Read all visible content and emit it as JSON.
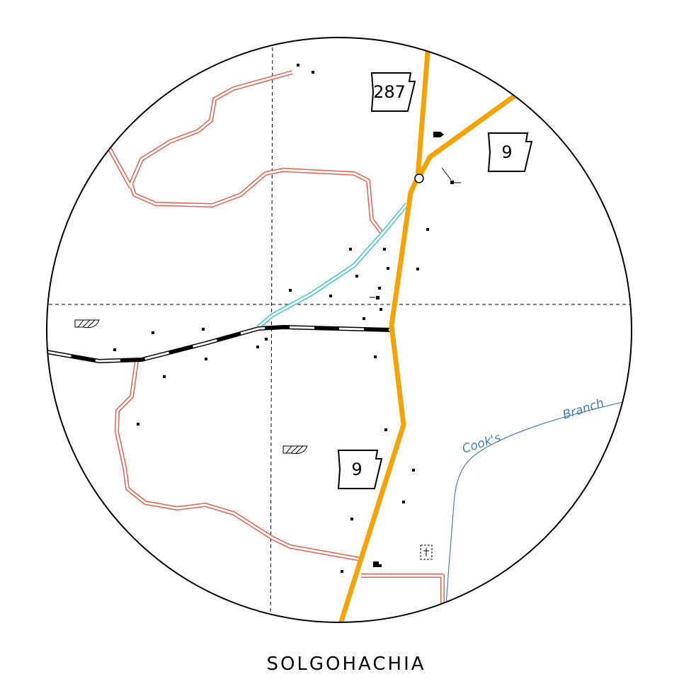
{
  "title": "SOLGOHACHIA",
  "shields": [
    {
      "label": "287"
    },
    {
      "label": "9"
    },
    {
      "label": "9"
    }
  ],
  "stream": {
    "labels": [
      "Cook's",
      "Branch"
    ]
  }
}
